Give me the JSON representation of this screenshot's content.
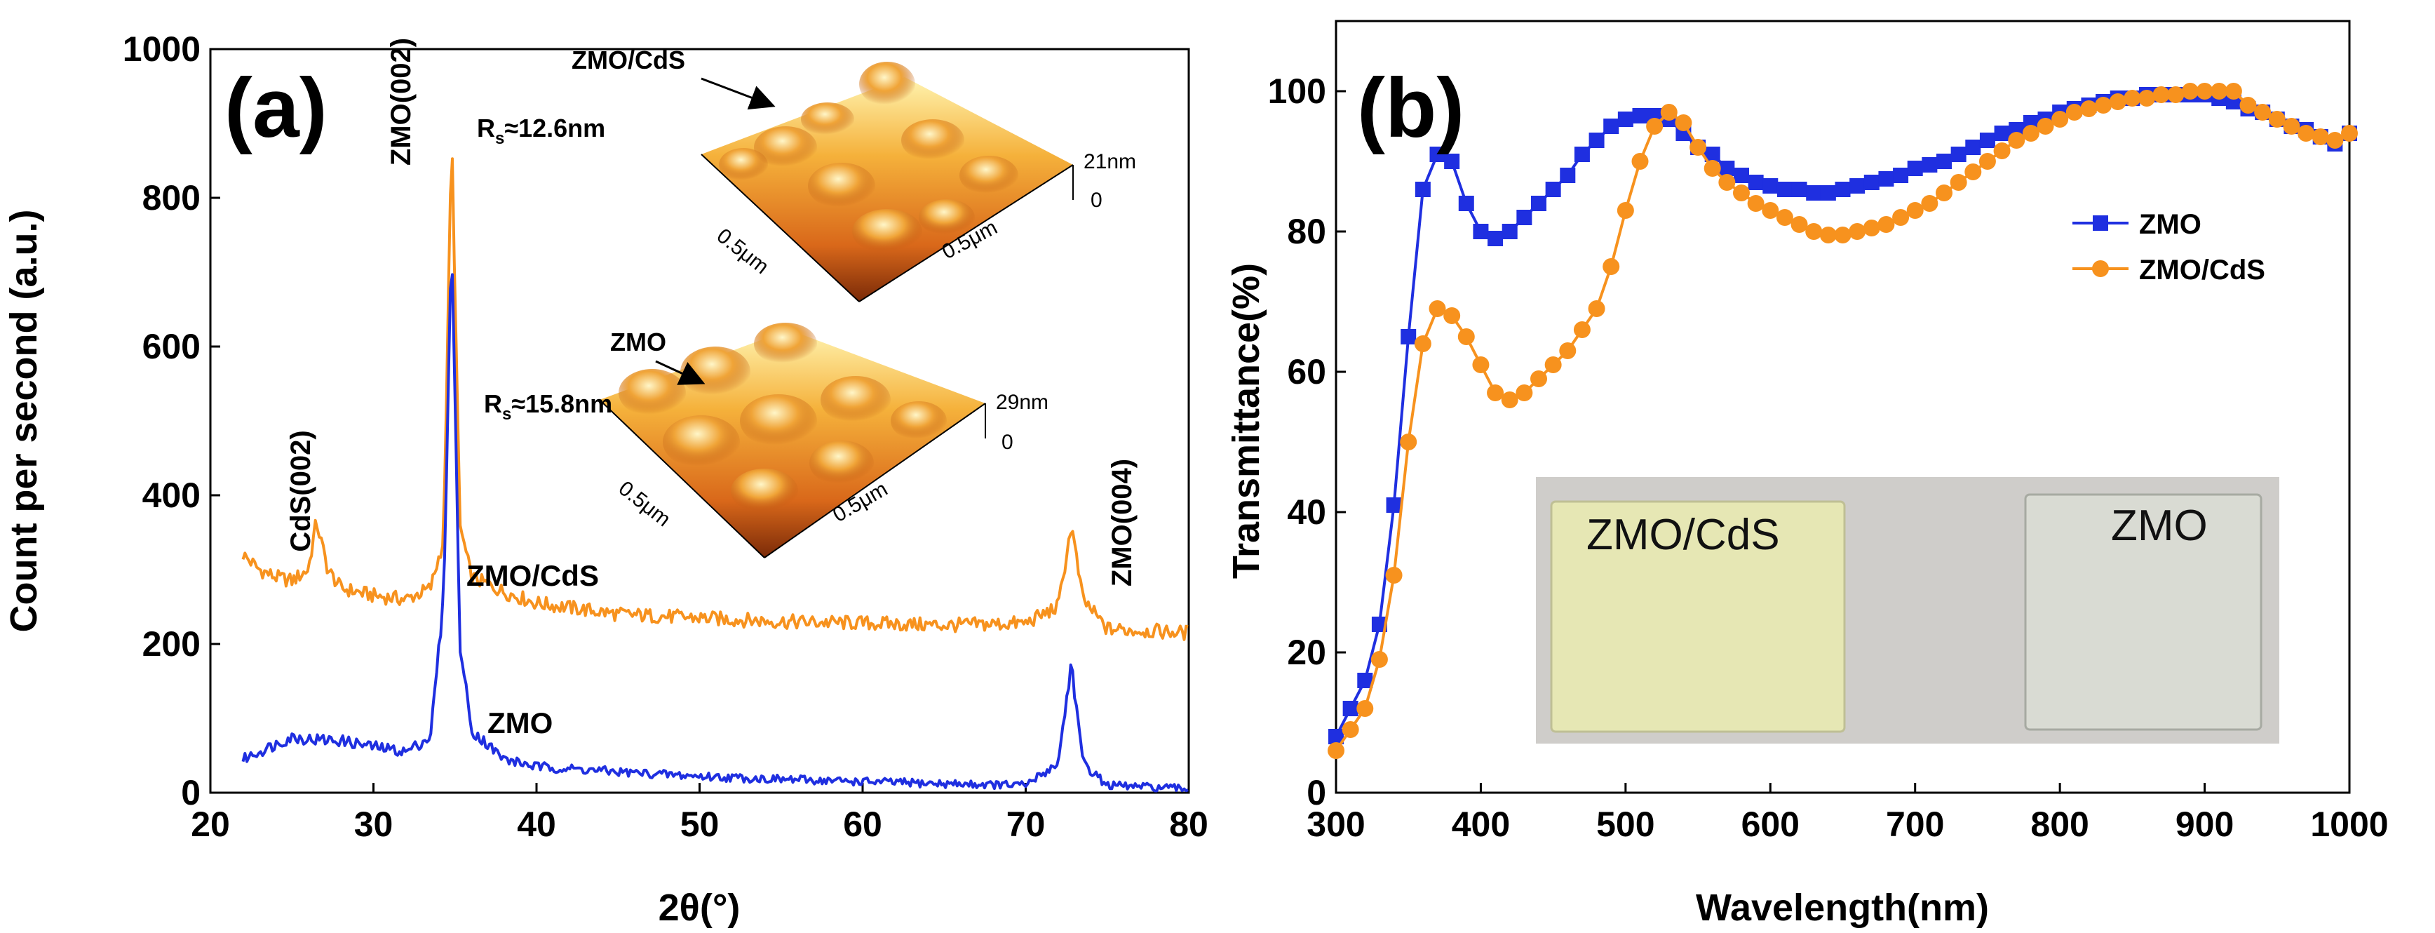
{
  "chart_data": [
    {
      "type": "line",
      "panel_label": "(a)",
      "xlabel": "2θ(°)",
      "ylabel": "Count per second (a.u.)",
      "xlim": [
        20,
        80
      ],
      "ylim": [
        0,
        1000
      ],
      "x_ticks": [
        20,
        30,
        40,
        50,
        60,
        70,
        80
      ],
      "y_ticks": [
        0,
        200,
        400,
        600,
        800,
        1000
      ],
      "series": [
        {
          "name": "ZMO/CdS",
          "color": "#f7921e",
          "points": [
            [
              22,
              320
            ],
            [
              23,
              300
            ],
            [
              24,
              290
            ],
            [
              25,
              285
            ],
            [
              26,
              300
            ],
            [
              26.5,
              365
            ],
            [
              27.2,
              300
            ],
            [
              28,
              275
            ],
            [
              30,
              265
            ],
            [
              32,
              260
            ],
            [
              33.5,
              275
            ],
            [
              34.3,
              340
            ],
            [
              34.8,
              890
            ],
            [
              35.3,
              360
            ],
            [
              36,
              290
            ],
            [
              38,
              270
            ],
            [
              40,
              255
            ],
            [
              45,
              240
            ],
            [
              50,
              235
            ],
            [
              55,
              230
            ],
            [
              60,
              228
            ],
            [
              65,
              225
            ],
            [
              70,
              228
            ],
            [
              72,
              250
            ],
            [
              72.8,
              360
            ],
            [
              73.5,
              260
            ],
            [
              75,
              220
            ],
            [
              80,
              215
            ]
          ]
        },
        {
          "name": "ZMO",
          "color": "#1f2fe0",
          "points": [
            [
              22,
              45
            ],
            [
              23,
              55
            ],
            [
              24,
              65
            ],
            [
              25,
              75
            ],
            [
              26,
              72
            ],
            [
              28,
              70
            ],
            [
              30,
              62
            ],
            [
              32,
              55
            ],
            [
              33.5,
              75
            ],
            [
              34.3,
              260
            ],
            [
              34.8,
              750
            ],
            [
              35.3,
              200
            ],
            [
              36,
              85
            ],
            [
              38,
              45
            ],
            [
              40,
              35
            ],
            [
              45,
              28
            ],
            [
              50,
              22
            ],
            [
              55,
              18
            ],
            [
              60,
              15
            ],
            [
              65,
              12
            ],
            [
              70,
              10
            ],
            [
              72,
              40
            ],
            [
              72.8,
              175
            ],
            [
              73.5,
              40
            ],
            [
              75,
              10
            ],
            [
              80,
              5
            ]
          ]
        }
      ],
      "annotations": {
        "peak_cds002": "CdS(002)",
        "peak_zmo002": "ZMO(002)",
        "peak_zmo004": "ZMO(004)",
        "label_zmo_cds": "ZMO/CdS",
        "label_zmo": "ZMO"
      },
      "inset_afm": [
        {
          "sample": "ZMO/CdS",
          "roughness": "R",
          "roughness_sub": "s",
          "roughness_value": "≈12.6nm",
          "z_max": "21nm",
          "z_min": "0",
          "scale_x": "0.5μm",
          "scale_y": "0.5μm"
        },
        {
          "sample": "ZMO",
          "roughness": "R",
          "roughness_sub": "s",
          "roughness_value": "≈15.8nm",
          "z_max": "29nm",
          "z_min": "0",
          "scale_x": "0.5μm",
          "scale_y": "0.5μm"
        }
      ]
    },
    {
      "type": "line",
      "panel_label": "(b)",
      "xlabel": "Wavelength(nm)",
      "ylabel": "Transmittance(%)",
      "xlim": [
        300,
        1000
      ],
      "ylim": [
        0,
        110
      ],
      "x_ticks": [
        300,
        400,
        500,
        600,
        700,
        800,
        900,
        1000
      ],
      "y_ticks": [
        0,
        20,
        40,
        60,
        80,
        100
      ],
      "legend": [
        "ZMO",
        "ZMO/CdS"
      ],
      "legend_position": "right",
      "series": [
        {
          "name": "ZMO",
          "color": "#1f2fe0",
          "marker": "square",
          "points": [
            [
              300,
              8
            ],
            [
              310,
              12
            ],
            [
              320,
              16
            ],
            [
              330,
              24
            ],
            [
              340,
              41
            ],
            [
              350,
              65
            ],
            [
              360,
              86
            ],
            [
              370,
              91
            ],
            [
              380,
              90
            ],
            [
              390,
              84
            ],
            [
              400,
              80
            ],
            [
              410,
              79
            ],
            [
              420,
              80
            ],
            [
              430,
              82
            ],
            [
              440,
              84
            ],
            [
              450,
              86
            ],
            [
              460,
              88
            ],
            [
              470,
              91
            ],
            [
              480,
              93
            ],
            [
              490,
              95
            ],
            [
              500,
              96
            ],
            [
              510,
              96.5
            ],
            [
              520,
              96.5
            ],
            [
              530,
              96
            ],
            [
              540,
              94
            ],
            [
              550,
              92
            ],
            [
              560,
              91
            ],
            [
              570,
              89
            ],
            [
              580,
              88
            ],
            [
              590,
              87
            ],
            [
              600,
              86.5
            ],
            [
              610,
              86
            ],
            [
              620,
              86
            ],
            [
              630,
              85.5
            ],
            [
              640,
              85.5
            ],
            [
              650,
              86
            ],
            [
              660,
              86.5
            ],
            [
              670,
              87
            ],
            [
              680,
              87.5
            ],
            [
              690,
              88
            ],
            [
              700,
              89
            ],
            [
              710,
              89.5
            ],
            [
              720,
              90
            ],
            [
              730,
              91
            ],
            [
              740,
              92
            ],
            [
              750,
              93
            ],
            [
              760,
              94
            ],
            [
              770,
              94.5
            ],
            [
              780,
              95.5
            ],
            [
              790,
              96
            ],
            [
              800,
              97
            ],
            [
              810,
              97.5
            ],
            [
              820,
              98
            ],
            [
              830,
              98.5
            ],
            [
              840,
              99
            ],
            [
              850,
              99
            ],
            [
              860,
              99.5
            ],
            [
              870,
              99.5
            ],
            [
              880,
              99.5
            ],
            [
              890,
              99.5
            ],
            [
              900,
              99.5
            ],
            [
              910,
              99
            ],
            [
              920,
              98.5
            ],
            [
              930,
              97.5
            ],
            [
              940,
              97
            ],
            [
              950,
              96
            ],
            [
              960,
              95
            ],
            [
              970,
              94.5
            ],
            [
              980,
              93.5
            ],
            [
              990,
              92.5
            ],
            [
              1000,
              94
            ]
          ]
        },
        {
          "name": "ZMO/CdS",
          "color": "#f7921e",
          "marker": "circle",
          "points": [
            [
              300,
              6
            ],
            [
              310,
              9
            ],
            [
              320,
              12
            ],
            [
              330,
              19
            ],
            [
              340,
              31
            ],
            [
              350,
              50
            ],
            [
              360,
              64
            ],
            [
              370,
              69
            ],
            [
              380,
              68
            ],
            [
              390,
              65
            ],
            [
              400,
              61
            ],
            [
              410,
              57
            ],
            [
              420,
              56
            ],
            [
              430,
              57
            ],
            [
              440,
              59
            ],
            [
              450,
              61
            ],
            [
              460,
              63
            ],
            [
              470,
              66
            ],
            [
              480,
              69
            ],
            [
              490,
              75
            ],
            [
              500,
              83
            ],
            [
              510,
              90
            ],
            [
              520,
              95
            ],
            [
              530,
              97
            ],
            [
              540,
              95.5
            ],
            [
              550,
              92
            ],
            [
              560,
              89
            ],
            [
              570,
              87
            ],
            [
              580,
              85.5
            ],
            [
              590,
              84
            ],
            [
              600,
              83
            ],
            [
              610,
              82
            ],
            [
              620,
              81
            ],
            [
              630,
              80
            ],
            [
              640,
              79.5
            ],
            [
              650,
              79.5
            ],
            [
              660,
              80
            ],
            [
              670,
              80.5
            ],
            [
              680,
              81
            ],
            [
              690,
              82
            ],
            [
              700,
              83
            ],
            [
              710,
              84
            ],
            [
              720,
              85.5
            ],
            [
              730,
              87
            ],
            [
              740,
              88.5
            ],
            [
              750,
              90
            ],
            [
              760,
              91.5
            ],
            [
              770,
              93
            ],
            [
              780,
              94
            ],
            [
              790,
              95
            ],
            [
              800,
              96
            ],
            [
              810,
              97
            ],
            [
              820,
              97.5
            ],
            [
              830,
              98
            ],
            [
              840,
              98.5
            ],
            [
              850,
              99
            ],
            [
              860,
              99
            ],
            [
              870,
              99.5
            ],
            [
              880,
              99.5
            ],
            [
              890,
              100
            ],
            [
              900,
              100
            ],
            [
              910,
              100
            ],
            [
              920,
              100
            ],
            [
              930,
              98
            ],
            [
              940,
              97
            ],
            [
              950,
              96
            ],
            [
              960,
              95
            ],
            [
              970,
              94
            ],
            [
              980,
              93.5
            ],
            [
              990,
              93
            ],
            [
              1000,
              94
            ]
          ]
        }
      ],
      "inset_photo": {
        "left_label": "ZMO/CdS",
        "right_label": "ZMO",
        "background_color": "#cfcdca",
        "left_sample_color": "#e6e7b4",
        "right_sample_color": "#d9dbd3"
      }
    }
  ]
}
